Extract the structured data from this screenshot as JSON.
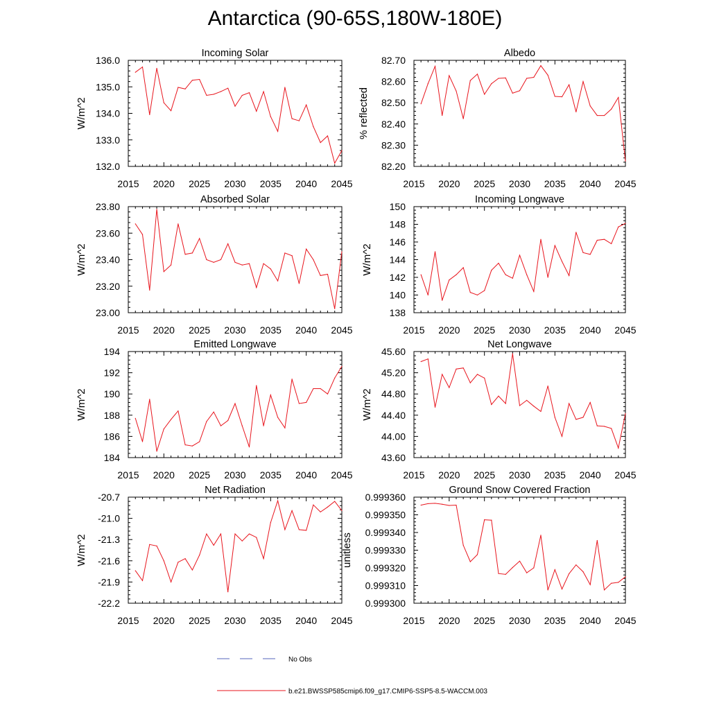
{
  "title": "Antarctica (90-65S,180W-180E)",
  "colors": {
    "model_line": "#e8141c",
    "obs_line": "#5566bb",
    "axis": "#000000"
  },
  "legend": {
    "items": [
      {
        "label": "No Obs",
        "style": "dashed",
        "color": "#5566bb"
      },
      {
        "label": "b.e21.BWSSP585cmip6.f09_g17.CMIP6-SSP5-8.5-WACCM.003",
        "style": "solid",
        "color": "#e8141c"
      }
    ]
  },
  "chart_data": [
    {
      "type": "line",
      "title": "Incoming Solar",
      "ylabel": "W/m^2",
      "xlim": [
        2015,
        2045
      ],
      "ylim": [
        132.0,
        136.0
      ],
      "yticks": [
        "132.0",
        "133.0",
        "134.0",
        "135.0",
        "136.0"
      ],
      "xticks": [
        "2015",
        "2020",
        "2025",
        "2030",
        "2035",
        "2040",
        "2045"
      ],
      "x": [
        2016,
        2017,
        2018,
        2019,
        2020,
        2021,
        2022,
        2023,
        2024,
        2025,
        2026,
        2027,
        2028,
        2029,
        2030,
        2031,
        2032,
        2033,
        2034,
        2035,
        2036,
        2037,
        2038,
        2039,
        2040,
        2041,
        2042,
        2043,
        2044,
        2045
      ],
      "values": [
        135.55,
        135.75,
        133.95,
        135.7,
        134.4,
        134.1,
        134.98,
        134.92,
        135.25,
        135.28,
        134.68,
        134.72,
        134.82,
        134.95,
        134.27,
        134.68,
        134.78,
        134.08,
        134.82,
        133.88,
        133.32,
        134.98,
        133.8,
        133.72,
        134.32,
        133.5,
        132.9,
        133.15,
        132.12,
        132.6
      ],
      "series": [
        {
          "name": "b.e21.BWSSP585cmip6.f09_g17.CMIP6-SSP5-8.5-WACCM.003"
        }
      ]
    },
    {
      "type": "line",
      "title": "Albedo",
      "ylabel": "% reflected",
      "xlim": [
        2015,
        2045
      ],
      "ylim": [
        82.2,
        82.7
      ],
      "yticks": [
        "82.20",
        "82.30",
        "82.40",
        "82.50",
        "82.60",
        "82.70"
      ],
      "xticks": [
        "2015",
        "2020",
        "2025",
        "2030",
        "2035",
        "2040",
        "2045"
      ],
      "x": [
        2016,
        2017,
        2018,
        2019,
        2020,
        2021,
        2022,
        2023,
        2024,
        2025,
        2026,
        2027,
        2028,
        2029,
        2030,
        2031,
        2032,
        2033,
        2034,
        2035,
        2036,
        2037,
        2038,
        2039,
        2040,
        2041,
        2042,
        2043,
        2044,
        2045
      ],
      "values": [
        82.495,
        82.59,
        82.672,
        82.44,
        82.628,
        82.555,
        82.425,
        82.605,
        82.635,
        82.54,
        82.59,
        82.615,
        82.617,
        82.545,
        82.557,
        82.615,
        82.62,
        82.675,
        82.63,
        82.53,
        82.528,
        82.585,
        82.457,
        82.6,
        82.485,
        82.44,
        82.44,
        82.47,
        82.525,
        82.225
      ],
      "series": [
        {
          "name": "b.e21.BWSSP585cmip6.f09_g17.CMIP6-SSP5-8.5-WACCM.003"
        }
      ]
    },
    {
      "type": "line",
      "title": "Absorbed Solar",
      "ylabel": "W/m^2",
      "xlim": [
        2015,
        2045
      ],
      "ylim": [
        23.0,
        23.8
      ],
      "yticks": [
        "23.00",
        "23.20",
        "23.40",
        "23.60",
        "23.80"
      ],
      "xticks": [
        "2015",
        "2020",
        "2025",
        "2030",
        "2035",
        "2040",
        "2045"
      ],
      "x": [
        2016,
        2017,
        2018,
        2019,
        2020,
        2021,
        2022,
        2023,
        2024,
        2025,
        2026,
        2027,
        2028,
        2029,
        2030,
        2031,
        2032,
        2033,
        2034,
        2035,
        2036,
        2037,
        2038,
        2039,
        2040,
        2041,
        2042,
        2043,
        2044,
        2045
      ],
      "values": [
        23.67,
        23.59,
        23.17,
        23.78,
        23.31,
        23.36,
        23.67,
        23.44,
        23.45,
        23.56,
        23.4,
        23.38,
        23.4,
        23.52,
        23.38,
        23.36,
        23.37,
        23.19,
        23.37,
        23.33,
        23.24,
        23.45,
        23.43,
        23.22,
        23.48,
        23.4,
        23.28,
        23.29,
        23.03,
        23.46
      ],
      "series": [
        {
          "name": "b.e21.BWSSP585cmip6.f09_g17.CMIP6-SSP5-8.5-WACCM.003"
        }
      ]
    },
    {
      "type": "line",
      "title": "Incoming Longwave",
      "ylabel": "W/m^2",
      "xlim": [
        2015,
        2045
      ],
      "ylim": [
        138,
        150
      ],
      "yticks": [
        "138",
        "140",
        "142",
        "144",
        "146",
        "148",
        "150"
      ],
      "xticks": [
        "2015",
        "2020",
        "2025",
        "2030",
        "2035",
        "2040",
        "2045"
      ],
      "x": [
        2016,
        2017,
        2018,
        2019,
        2020,
        2021,
        2022,
        2023,
        2024,
        2025,
        2026,
        2027,
        2028,
        2029,
        2030,
        2031,
        2032,
        2033,
        2034,
        2035,
        2036,
        2037,
        2038,
        2039,
        2040,
        2041,
        2042,
        2043,
        2044,
        2045
      ],
      "values": [
        142.3,
        140.0,
        144.9,
        139.4,
        141.7,
        142.3,
        143.1,
        140.3,
        140.0,
        140.5,
        142.8,
        143.6,
        142.3,
        141.9,
        144.5,
        142.3,
        140.4,
        146.3,
        142.0,
        145.6,
        143.8,
        142.2,
        147.1,
        144.8,
        144.6,
        146.2,
        146.3,
        145.8,
        147.7,
        148.1
      ],
      "series": [
        {
          "name": "b.e21.BWSSP585cmip6.f09_g17.CMIP6-SSP5-8.5-WACCM.003"
        }
      ]
    },
    {
      "type": "line",
      "title": "Emitted Longwave",
      "ylabel": "W/m^2",
      "xlim": [
        2015,
        2045
      ],
      "ylim": [
        184,
        194
      ],
      "yticks": [
        "184",
        "186",
        "188",
        "190",
        "192",
        "194"
      ],
      "xticks": [
        "2015",
        "2020",
        "2025",
        "2030",
        "2035",
        "2040",
        "2045"
      ],
      "x": [
        2016,
        2017,
        2018,
        2019,
        2020,
        2021,
        2022,
        2023,
        2024,
        2025,
        2026,
        2027,
        2028,
        2029,
        2030,
        2031,
        2032,
        2033,
        2034,
        2035,
        2036,
        2037,
        2038,
        2039,
        2040,
        2041,
        2042,
        2043,
        2044,
        2045
      ],
      "values": [
        187.7,
        185.5,
        189.5,
        184.6,
        186.7,
        187.6,
        188.4,
        185.2,
        185.1,
        185.5,
        187.4,
        188.3,
        187.0,
        187.5,
        189.1,
        187.0,
        185.0,
        190.8,
        187.0,
        189.9,
        187.8,
        186.8,
        191.4,
        189.1,
        189.2,
        190.5,
        190.5,
        190.0,
        191.5,
        192.6
      ],
      "series": [
        {
          "name": "b.e21.BWSSP585cmip6.f09_g17.CMIP6-SSP5-8.5-WACCM.003"
        }
      ]
    },
    {
      "type": "line",
      "title": "Net Longwave",
      "ylabel": "W/m^2",
      "xlim": [
        2015,
        2045
      ],
      "ylim": [
        43.6,
        45.6
      ],
      "yticks": [
        "43.60",
        "44.00",
        "44.40",
        "44.80",
        "45.20",
        "45.60"
      ],
      "xticks": [
        "2015",
        "2020",
        "2025",
        "2030",
        "2035",
        "2040",
        "2045"
      ],
      "x": [
        2016,
        2017,
        2018,
        2019,
        2020,
        2021,
        2022,
        2023,
        2024,
        2025,
        2026,
        2027,
        2028,
        2029,
        2030,
        2031,
        2032,
        2033,
        2034,
        2035,
        2036,
        2037,
        2038,
        2039,
        2040,
        2041,
        2042,
        2043,
        2044,
        2045
      ],
      "values": [
        45.41,
        45.46,
        44.55,
        45.17,
        44.92,
        45.27,
        45.29,
        45.01,
        45.17,
        45.1,
        44.6,
        44.76,
        44.62,
        45.56,
        44.58,
        44.68,
        44.57,
        44.47,
        44.95,
        44.36,
        44.0,
        44.62,
        44.32,
        44.36,
        44.64,
        44.2,
        44.19,
        44.15,
        43.78,
        44.43
      ],
      "series": [
        {
          "name": "b.e21.BWSSP585cmip6.f09_g17.CMIP6-SSP5-8.5-WACCM.003"
        }
      ]
    },
    {
      "type": "line",
      "title": "Net Radiation",
      "ylabel": "W/m^2",
      "xlim": [
        2015,
        2045
      ],
      "ylim": [
        -22.2,
        -20.7
      ],
      "yticks": [
        "-22.2",
        "-21.9",
        "-21.6",
        "-21.3",
        "-21.0",
        "-20.7"
      ],
      "xticks": [
        "2015",
        "2020",
        "2025",
        "2030",
        "2035",
        "2040",
        "2045"
      ],
      "x": [
        2016,
        2017,
        2018,
        2019,
        2020,
        2021,
        2022,
        2023,
        2024,
        2025,
        2026,
        2027,
        2028,
        2029,
        2030,
        2031,
        2032,
        2033,
        2034,
        2035,
        2036,
        2037,
        2038,
        2039,
        2040,
        2041,
        2042,
        2043,
        2044,
        2045
      ],
      "values": [
        -21.74,
        -21.88,
        -21.37,
        -21.39,
        -21.6,
        -21.9,
        -21.62,
        -21.57,
        -21.73,
        -21.52,
        -21.22,
        -21.38,
        -21.22,
        -22.04,
        -21.22,
        -21.32,
        -21.22,
        -21.27,
        -21.57,
        -21.06,
        -20.75,
        -21.16,
        -20.89,
        -21.16,
        -21.17,
        -20.81,
        -20.91,
        -20.84,
        -20.76,
        -20.89
      ],
      "series": [
        {
          "name": "b.e21.BWSSP585cmip6.f09_g17.CMIP6-SSP5-8.5-WACCM.003"
        }
      ]
    },
    {
      "type": "line",
      "title": "Ground Snow Covered Fraction",
      "ylabel": "unitless",
      "xlim": [
        2015,
        2045
      ],
      "ylim": [
        0.9993,
        0.99936
      ],
      "yticks": [
        "0.999300",
        "0.999310",
        "0.999320",
        "0.999330",
        "0.999340",
        "0.999350",
        "0.999360"
      ],
      "xticks": [
        "2015",
        "2020",
        "2025",
        "2030",
        "2035",
        "2040",
        "2045"
      ],
      "x": [
        2016,
        2017,
        2018,
        2019,
        2020,
        2021,
        2022,
        2023,
        2024,
        2025,
        2026,
        2027,
        2028,
        2029,
        2030,
        2031,
        2032,
        2033,
        2034,
        2035,
        2036,
        2037,
        2038,
        2039,
        2040,
        2041,
        2042,
        2043,
        2044,
        2045
      ],
      "values": [
        0.9993555,
        0.9993563,
        0.9993565,
        0.999356,
        0.9993553,
        0.9993555,
        0.9993328,
        0.9993235,
        0.9993275,
        0.9993472,
        0.999347,
        0.9993168,
        0.9993163,
        0.9993202,
        0.9993238,
        0.9993172,
        0.99932,
        0.9993385,
        0.9993075,
        0.999319,
        0.999308,
        0.9993167,
        0.9993217,
        0.9993178,
        0.9993105,
        0.9993355,
        0.9993075,
        0.9993113,
        0.9993118,
        0.999315
      ],
      "series": [
        {
          "name": "b.e21.BWSSP585cmip6.f09_g17.CMIP6-SSP5-8.5-WACCM.003"
        }
      ]
    }
  ]
}
